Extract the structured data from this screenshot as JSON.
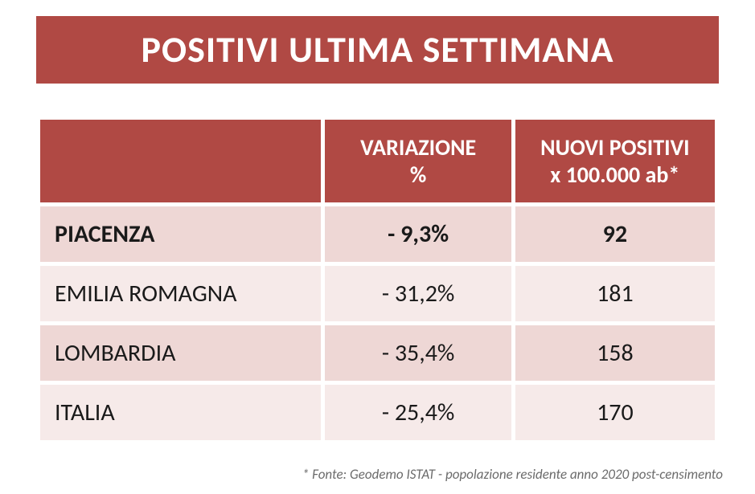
{
  "title": "POSITIVI ULTIMA SETTIMANA",
  "table": {
    "columns": [
      "",
      "VARIAZIONE %",
      "NUOVI POSITIVI x 100.000 ab*"
    ],
    "rows": [
      {
        "region": "PIACENZA",
        "variazione": "- 9,3%",
        "nuovi": "92",
        "emph": true
      },
      {
        "region": "EMILIA ROMAGNA",
        "variazione": "- 31,2%",
        "nuovi": "181",
        "emph": false
      },
      {
        "region": "LOMBARDIA",
        "variazione": "- 35,4%",
        "nuovi": "158",
        "emph": false
      },
      {
        "region": "ITALIA",
        "variazione": "- 25,4%",
        "nuovi": "170",
        "emph": false
      }
    ],
    "colors": {
      "header_bg": "#b04944",
      "header_fg": "#ffffff",
      "row_odd_bg": "#eed7d5",
      "row_even_bg": "#f6eae9",
      "border": "#ffffff",
      "text": "#1a1a1a"
    },
    "fontsizes": {
      "title": 46,
      "header": 28,
      "body": 30,
      "footnote": 17
    }
  },
  "footnote": "* Fonte: Geodemo ISTAT - popolazione residente anno 2020 post-censimento"
}
